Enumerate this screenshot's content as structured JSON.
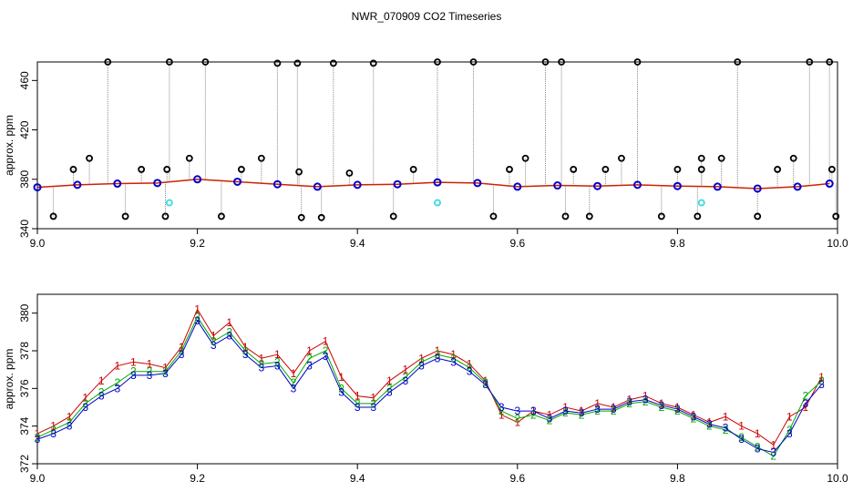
{
  "title": "NWR_070909  CO2 Timeseries",
  "chart_data": [
    {
      "type": "scatter",
      "ylabel": "approx. ppm",
      "xlabel": "",
      "xlim": [
        9.0,
        10.0
      ],
      "ylim": [
        340,
        475
      ],
      "xticks": [
        9.0,
        9.2,
        9.4,
        9.6,
        9.8,
        10.0
      ],
      "xtick_labels": [
        "9.0",
        "9.2",
        "9.4",
        "9.6",
        "9.8",
        "10.0"
      ],
      "yticks": [
        340,
        380,
        420,
        460
      ],
      "ytick_labels": [
        "340",
        "380",
        "420",
        "460"
      ],
      "grid": false,
      "series": [
        {
          "color": "#0000cc",
          "marker": "circle",
          "x": [
            9.0,
            9.05,
            9.1,
            9.15,
            9.2,
            9.25,
            9.3,
            9.35,
            9.4,
            9.45,
            9.5,
            9.55,
            9.6,
            9.65,
            9.7,
            9.75,
            9.8,
            9.85,
            9.9,
            9.95,
            9.99
          ],
          "values": [
            373.5,
            375.5,
            376.5,
            377.0,
            380.0,
            378.0,
            376.0,
            374.0,
            375.5,
            376.0,
            377.5,
            377.0,
            374.0,
            375.0,
            374.5,
            375.5,
            374.5,
            374.0,
            372.5,
            374.0,
            376.5
          ]
        },
        {
          "color": "#000000",
          "marker": "circle-open",
          "x": [
            9.02,
            9.045,
            9.065,
            9.088,
            9.11,
            9.13,
            9.16,
            9.162,
            9.165,
            9.19,
            9.21,
            9.23,
            9.255,
            9.28,
            9.3,
            9.325,
            9.327,
            9.33,
            9.355,
            9.37,
            9.39,
            9.42,
            9.445,
            9.47,
            9.5,
            9.545,
            9.57,
            9.59,
            9.61,
            9.635,
            9.655,
            9.66,
            9.67,
            9.69,
            9.71,
            9.73,
            9.75,
            9.78,
            9.8,
            9.825,
            9.83,
            9.83,
            9.855,
            9.875,
            9.9,
            9.925,
            9.945,
            9.965,
            9.99,
            9.993,
            9.998
          ],
          "values": [
            350,
            388,
            397,
            475,
            350,
            388,
            350,
            388,
            475,
            397,
            475,
            350,
            388,
            397,
            474,
            474,
            386,
            349,
            349,
            474,
            385,
            474,
            350,
            388,
            475,
            475,
            350,
            388,
            397,
            475,
            475,
            350,
            388,
            350,
            388,
            397,
            475,
            350,
            388,
            350,
            388,
            397,
            397,
            475,
            350,
            388,
            397,
            475,
            475,
            388,
            350
          ]
        },
        {
          "color": "#44dddd",
          "marker": "circle-open",
          "x": [
            9.165,
            9.5,
            9.83
          ],
          "values": [
            361,
            361,
            361
          ]
        }
      ]
    },
    {
      "type": "scatter",
      "ylabel": "approx. ppm",
      "xlabel": "",
      "xlim": [
        9.0,
        10.0
      ],
      "ylim": [
        372,
        381
      ],
      "xticks": [
        9.0,
        9.2,
        9.4,
        9.6,
        9.8,
        10.0
      ],
      "xtick_labels": [
        "9.0",
        "9.2",
        "9.4",
        "9.6",
        "9.8",
        "10.0"
      ],
      "yticks": [
        372,
        374,
        376,
        378,
        380
      ],
      "ytick_labels": [
        "372",
        "374",
        "376",
        "378",
        "380"
      ],
      "grid": false,
      "x": [
        9.0,
        9.02,
        9.04,
        9.06,
        9.08,
        9.1,
        9.12,
        9.14,
        9.16,
        9.18,
        9.2,
        9.22,
        9.24,
        9.26,
        9.28,
        9.3,
        9.32,
        9.34,
        9.36,
        9.38,
        9.4,
        9.42,
        9.44,
        9.46,
        9.48,
        9.5,
        9.52,
        9.54,
        9.56,
        9.58,
        9.6,
        9.62,
        9.64,
        9.66,
        9.68,
        9.7,
        9.72,
        9.74,
        9.76,
        9.78,
        9.8,
        9.82,
        9.84,
        9.86,
        9.88,
        9.9,
        9.92,
        9.94,
        9.96,
        9.98
      ],
      "series": [
        {
          "name": "1",
          "color": "#cc0000",
          "marker": "text",
          "values": [
            373.6,
            374.0,
            374.5,
            375.5,
            376.4,
            377.2,
            377.4,
            377.3,
            377.1,
            378.2,
            380.2,
            378.8,
            379.5,
            378.2,
            377.6,
            377.8,
            376.8,
            378.0,
            378.5,
            376.6,
            375.6,
            375.5,
            376.4,
            377.0,
            377.6,
            378.0,
            377.8,
            377.3,
            376.4,
            374.6,
            374.2,
            374.8,
            374.6,
            375.0,
            374.8,
            375.2,
            375.0,
            375.4,
            375.6,
            375.2,
            375.0,
            374.6,
            374.2,
            374.5,
            374.0,
            373.6,
            373.0,
            374.5,
            375.0,
            376.6
          ]
        },
        {
          "name": "2",
          "color": "#00aa00",
          "marker": "text",
          "values": [
            373.4,
            373.8,
            374.2,
            375.2,
            375.8,
            376.3,
            376.9,
            376.9,
            376.9,
            378.0,
            379.8,
            378.5,
            379.0,
            378.0,
            377.3,
            377.4,
            376.3,
            377.6,
            378.0,
            376.0,
            375.2,
            375.2,
            376.0,
            376.6,
            377.4,
            377.8,
            377.6,
            377.1,
            376.3,
            374.8,
            374.4,
            374.6,
            374.3,
            374.7,
            374.6,
            374.8,
            374.8,
            375.2,
            375.3,
            375.0,
            374.8,
            374.4,
            374.0,
            373.8,
            373.4,
            372.9,
            372.4,
            373.8,
            375.6,
            376.4
          ]
        },
        {
          "name": "3",
          "color": "#0000cc",
          "marker": "text",
          "values": [
            373.3,
            373.6,
            374.0,
            375.0,
            375.6,
            376.0,
            376.7,
            376.7,
            376.8,
            377.8,
            379.6,
            378.3,
            378.8,
            377.8,
            377.1,
            377.2,
            376.0,
            377.2,
            377.7,
            375.8,
            375.0,
            375.0,
            375.8,
            376.4,
            377.2,
            377.6,
            377.4,
            376.9,
            376.2,
            375.0,
            374.8,
            374.8,
            374.4,
            374.8,
            374.7,
            374.9,
            374.9,
            375.3,
            375.4,
            375.1,
            374.9,
            374.5,
            374.1,
            373.9,
            373.3,
            372.8,
            372.6,
            373.6,
            375.2,
            376.2
          ]
        }
      ]
    }
  ]
}
